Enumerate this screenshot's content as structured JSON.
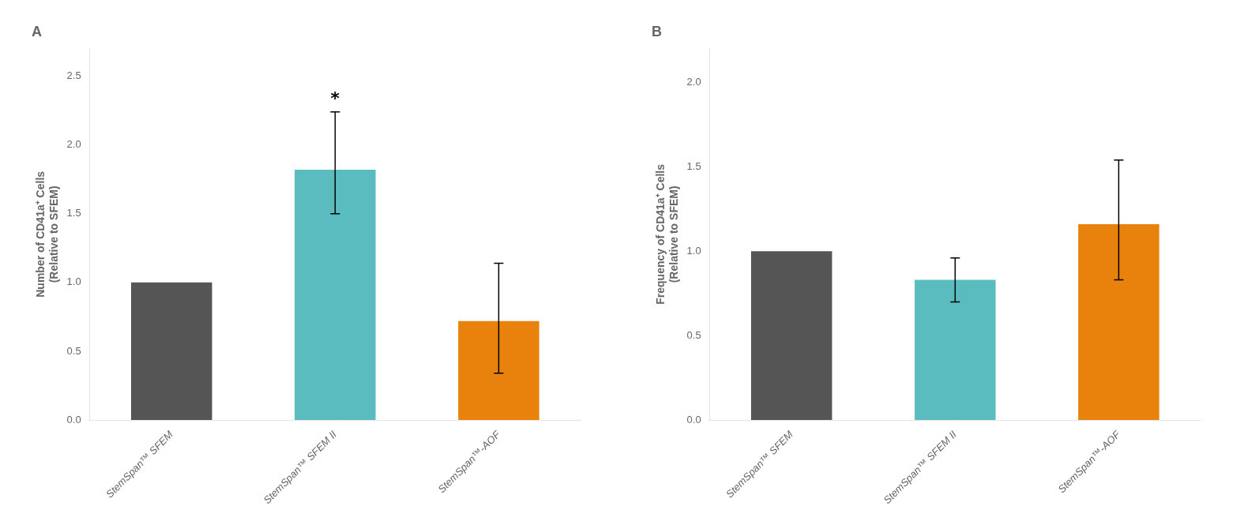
{
  "chart_data": [
    {
      "type": "bar",
      "title": "A",
      "categories": [
        "StemSpan™ SFEM",
        "StemSpan™ SFEM II",
        "StemSpan™-AOF"
      ],
      "values": [
        1.0,
        1.82,
        0.72
      ],
      "errors_upper": [
        0.0,
        0.42,
        0.42
      ],
      "errors_lower": [
        0.0,
        0.32,
        0.38
      ],
      "colors": [
        "#555555",
        "#5bbcbf",
        "#e8820c"
      ],
      "ylabel": "Number of CD41a⁺ Cells\n(Relative to SFEM)",
      "ylim": [
        0,
        2.7
      ],
      "yticks": [
        {
          "value": 0.0,
          "label": "0.0"
        },
        0.5,
        {
          "value": 1.0,
          "label": "1.0"
        },
        1.5,
        {
          "value": 2.0,
          "label": "2.0"
        },
        2.5
      ],
      "annotations": [
        {
          "category": "StemSpan™ SFEM II",
          "text": "*"
        }
      ],
      "grid": false
    },
    {
      "type": "bar",
      "title": "B",
      "categories": [
        "StemSpan™ SFEM",
        "StemSpan™ SFEM II",
        "StemSpan™-AOF"
      ],
      "values": [
        1.0,
        0.83,
        1.16
      ],
      "errors_upper": [
        0.0,
        0.13,
        0.38
      ],
      "errors_lower": [
        0.0,
        0.13,
        0.33
      ],
      "colors": [
        "#555555",
        "#5bbcbf",
        "#e8820c"
      ],
      "ylabel": "Frequency of CD41a⁺ Cells\n(Relative to SFEM)",
      "ylim": [
        0,
        2.2
      ],
      "yticks": [
        {
          "value": 0.0,
          "label": "0.0"
        },
        0.5,
        {
          "value": 1.0,
          "label": "1.0"
        },
        1.5,
        {
          "value": 2.0,
          "label": "2.0"
        }
      ],
      "grid": false
    }
  ]
}
